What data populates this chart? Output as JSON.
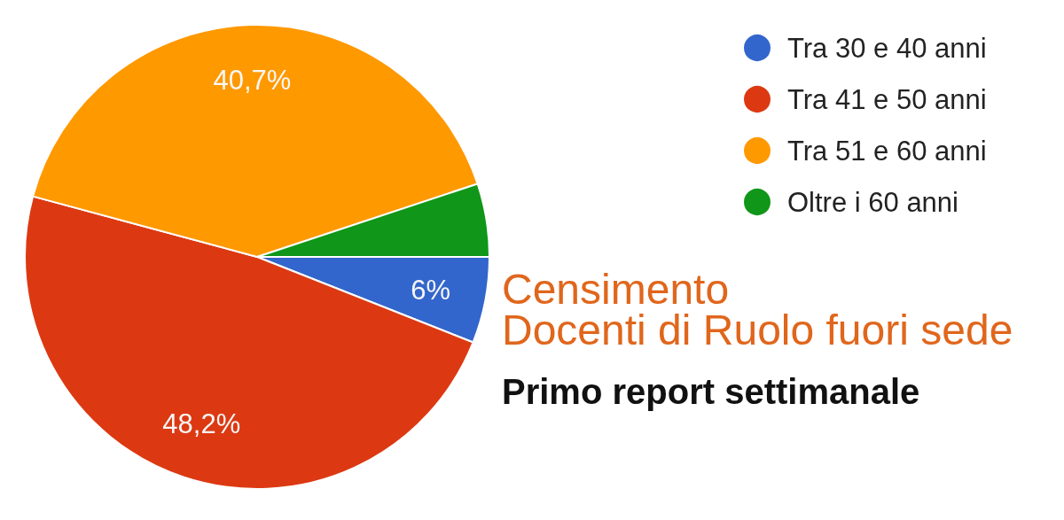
{
  "chart_data": {
    "type": "pie",
    "title": "Censimento\nDocenti di Ruolo fuori sede",
    "subtitle": "Primo report settimanale",
    "categories": [
      "Tra 30 e 40 anni",
      "Tra 41 e 50 anni",
      "Tra 51 e 60 anni",
      "Oltre i 60 anni"
    ],
    "values": [
      6,
      48.2,
      40.7,
      5.1
    ],
    "colors": [
      "#3366cc",
      "#dc3912",
      "#ff9900",
      "#109618"
    ],
    "value_labels": [
      "6%",
      "48,2%",
      "40,7%",
      null
    ],
    "legend": "top right"
  }
}
